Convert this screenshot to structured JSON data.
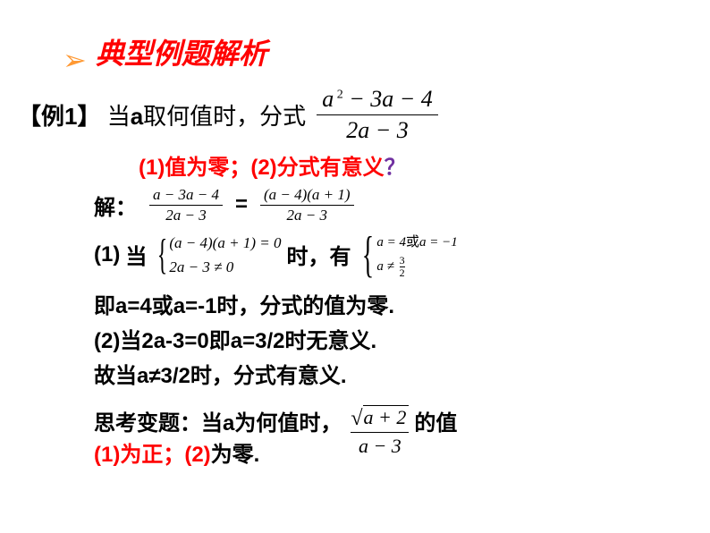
{
  "colors": {
    "accent_orange": "#ff9933",
    "accent_red": "#ff0000",
    "accent_purple": "#7030a0",
    "text": "#000000",
    "background": "#ffffff"
  },
  "header": {
    "arrow": "➢",
    "title": "典型例题解析"
  },
  "intro": {
    "label": "【例1】",
    "text_before_a": " 当",
    "var": "a",
    "text_after_a": "取何值时，分式"
  },
  "main_fraction": {
    "numerator": "a ² − 3a − 4",
    "denominator": "2a − 3"
  },
  "questions": {
    "q1_label": "(1)",
    "q1_text": "值为零；",
    "q2_label": "(2)",
    "q2_text": "分式有意义",
    "qmark": "？"
  },
  "solution": {
    "label": "解：",
    "frac1": {
      "num": "a  − 3a − 4",
      "den": "2a − 3"
    },
    "eq": "=",
    "frac2": {
      "num": "(a − 4)(a + 1)",
      "den": "2a − 3"
    }
  },
  "case1": {
    "label": "(1)",
    "when": "当",
    "cond1": "(a − 4)(a + 1) = 0",
    "cond2": "2a − 3 ≠ 0",
    "then": "时，有",
    "res1_pre": "a = 4",
    "res1_or": "或",
    "res1_post": "a = −1",
    "res2_pre": "a ≠ ",
    "res2_num": "3",
    "res2_den": "2"
  },
  "result1": {
    "pre": "即",
    "v1": "a=4",
    "or": "或",
    "v2": "a=-1",
    "post": "时，分式的值为零."
  },
  "result2": {
    "label": "(2)",
    "pre": "当",
    "cond": "2a-3=0",
    "mid": "即",
    "val": "a=3/2",
    "post": "时无意义."
  },
  "result3": {
    "pre": "故当",
    "cond": "a≠3/2",
    "post": "时，分式有意义."
  },
  "think": {
    "label": "思考变题：当",
    "var": "a",
    "text": "为何值时，",
    "sqrt_content": "a + 2",
    "denom": "a − 3",
    "tail": "的值",
    "q1": "(1)",
    "q1t": "为正；",
    "q2": "(2)",
    "q2t": "为零."
  }
}
